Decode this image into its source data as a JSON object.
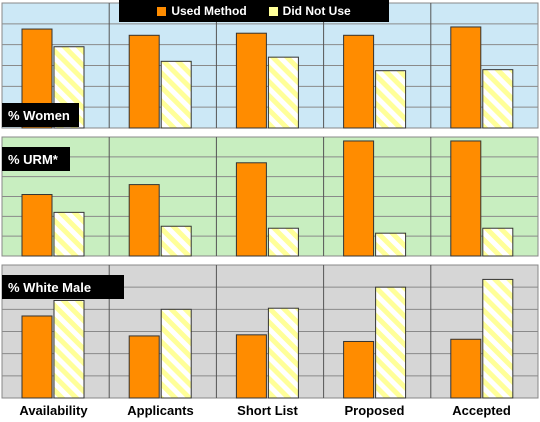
{
  "chart_data": {
    "type": "bar",
    "categories": [
      "Availability",
      "Applicants",
      "Short List",
      "Proposed",
      "Accepted"
    ],
    "legend": [
      {
        "label": "Used Method",
        "color": "#ff8c00",
        "pattern": "solid"
      },
      {
        "label": "Did Not Use",
        "color": "#ffffaa",
        "pattern": "diagonal-stripes"
      }
    ],
    "legend_position": "top",
    "grid": true,
    "panels": [
      {
        "label": "% Women",
        "background": "#cce8f6",
        "label_position": "bottom-left",
        "series": [
          {
            "name": "Used Method",
            "values": [
              95,
              89,
              91,
              89,
              97
            ]
          },
          {
            "name": "Did Not Use",
            "values": [
              78,
              64,
              68,
              55,
              56
            ]
          }
        ]
      },
      {
        "label": "% URM*",
        "background": "#c8eec0",
        "label_position": "top-left",
        "series": [
          {
            "name": "Used Method",
            "values": [
              62,
              72,
              94,
              116,
              116
            ]
          },
          {
            "name": "Did Not Use",
            "values": [
              44,
              30,
              28,
              23,
              28
            ]
          }
        ]
      },
      {
        "label": "% White Male",
        "background": "#d6d6d6",
        "label_position": "top-left",
        "series": [
          {
            "name": "Used Method",
            "values": [
              74,
              56,
              57,
              51,
              53
            ]
          },
          {
            "name": "Did Not Use",
            "values": [
              88,
              80,
              81,
              100,
              107
            ]
          }
        ]
      }
    ]
  }
}
